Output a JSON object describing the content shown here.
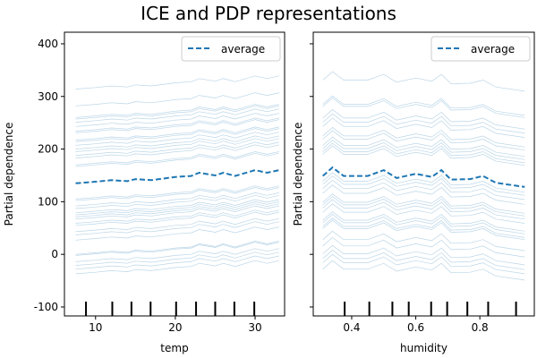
{
  "chart_data": {
    "title": "ICE and PDP representations",
    "colors": {
      "ice": "#1f77b4",
      "average": "#1f77b4",
      "deciles": "#000000"
    },
    "panels": [
      {
        "type": "line",
        "xlabel": "temp",
        "ylabel": "Partial dependence",
        "xlim": [
          6.1,
          33.7
        ],
        "ylim": [
          -117,
          422
        ],
        "xticks": [
          10,
          20,
          30
        ],
        "yticks": [
          -100,
          0,
          100,
          200,
          300,
          400
        ],
        "show_ytick_labels": true,
        "legend": {
          "label": "average",
          "placement": "top-right"
        },
        "x": [
          7.5,
          10,
          12,
          14,
          15,
          17,
          20,
          22,
          23,
          25,
          26,
          27.5,
          30,
          31.5,
          33
        ],
        "average": [
          135,
          138,
          141,
          139,
          143,
          141,
          147,
          149,
          155,
          150,
          155,
          149,
          160,
          155,
          160
        ],
        "ice_start_values": [
          314,
          282,
          260,
          257,
          251,
          243,
          234,
          231,
          217,
          214,
          207,
          200,
          195,
          188,
          183,
          170,
          167,
          105,
          102,
          92,
          87,
          79,
          75,
          71,
          67,
          59,
          55,
          43,
          37,
          27,
          0,
          -2,
          -14,
          -21,
          -28,
          -37
        ],
        "deciles": [
          8.8,
          12.1,
          14.5,
          16.9,
          20.1,
          22.6,
          25.0,
          27.4,
          29.9
        ]
      },
      {
        "type": "line",
        "xlabel": "humidity",
        "ylabel": "Partial dependence",
        "xlim": [
          0.28,
          0.97
        ],
        "ylim": [
          -117,
          422
        ],
        "xticks": [
          0.4,
          0.6,
          0.8
        ],
        "xtick_labels": [
          "0.4",
          "0.6",
          "0.8"
        ],
        "yticks": [
          -100,
          0,
          100,
          200,
          300,
          400
        ],
        "show_ytick_labels": false,
        "legend": {
          "label": "average",
          "placement": "top-right"
        },
        "x": [
          0.31,
          0.34,
          0.375,
          0.45,
          0.5,
          0.54,
          0.6,
          0.65,
          0.68,
          0.71,
          0.77,
          0.81,
          0.85,
          0.94
        ],
        "average": [
          149,
          165,
          149,
          149,
          160,
          145,
          153,
          147,
          160,
          142,
          143,
          149,
          136,
          128
        ],
        "ice_start_values": [
          331,
          285,
          281,
          259,
          251,
          243,
          225,
          219,
          207,
          201,
          195,
          190,
          139,
          133,
          125,
          116,
          99,
          94,
          88,
          80,
          65,
          60,
          53,
          49,
          28,
          16,
          1,
          -8,
          -16,
          -28
        ],
        "deciles": [
          0.378,
          0.455,
          0.527,
          0.578,
          0.648,
          0.698,
          0.761,
          0.826,
          0.913
        ]
      }
    ]
  }
}
